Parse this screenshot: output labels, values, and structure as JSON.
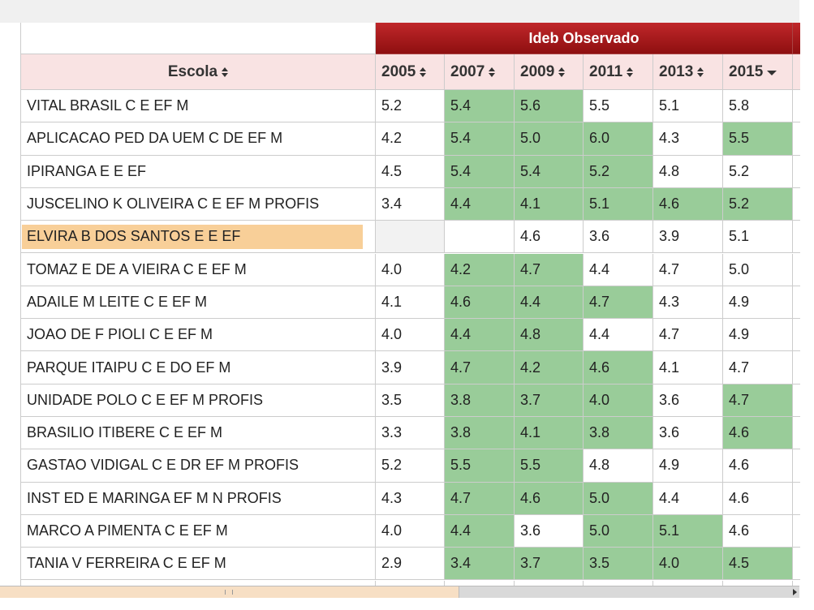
{
  "table": {
    "group_header": "Ideb Observado",
    "columns": [
      "Escola",
      "2005",
      "2007",
      "2009",
      "2011",
      "2013",
      "2015"
    ],
    "sorted_column": 6,
    "selected_row": 4,
    "highlight_color": "#99cc99",
    "rows": [
      {
        "escola": "VITAL BRASIL C E EF M",
        "ideb": [
          "5.2",
          "5.4",
          "5.6",
          "5.5",
          "5.1",
          "5.8"
        ],
        "highlight": [
          false,
          true,
          true,
          false,
          false,
          false
        ]
      },
      {
        "escola": "APLICACAO PED DA UEM C DE EF M",
        "ideb": [
          "4.2",
          "5.4",
          "5.0",
          "6.0",
          "4.3",
          "5.5"
        ],
        "highlight": [
          false,
          true,
          true,
          true,
          false,
          true
        ]
      },
      {
        "escola": "IPIRANGA E E EF",
        "ideb": [
          "4.5",
          "5.4",
          "5.4",
          "5.2",
          "4.8",
          "5.2"
        ],
        "highlight": [
          false,
          true,
          true,
          true,
          false,
          false
        ]
      },
      {
        "escola": "JUSCELINO K OLIVEIRA C E EF M PROFIS",
        "ideb": [
          "3.4",
          "4.4",
          "4.1",
          "5.1",
          "4.6",
          "5.2"
        ],
        "highlight": [
          false,
          true,
          true,
          true,
          true,
          true
        ]
      },
      {
        "escola": "ELVIRA B DOS SANTOS E E EF",
        "ideb": [
          null,
          null,
          "4.6",
          "3.6",
          "3.9",
          "5.1"
        ],
        "highlight": [
          false,
          false,
          false,
          false,
          false,
          false
        ]
      },
      {
        "escola": "TOMAZ E DE A VIEIRA C E EF M",
        "ideb": [
          "4.0",
          "4.2",
          "4.7",
          "4.4",
          "4.7",
          "5.0"
        ],
        "highlight": [
          false,
          true,
          true,
          false,
          false,
          false
        ]
      },
      {
        "escola": "ADAILE M LEITE C E EF M",
        "ideb": [
          "4.1",
          "4.6",
          "4.4",
          "4.7",
          "4.3",
          "4.9"
        ],
        "highlight": [
          false,
          true,
          true,
          true,
          false,
          false
        ]
      },
      {
        "escola": "JOAO DE F PIOLI C E EF M",
        "ideb": [
          "4.0",
          "4.4",
          "4.8",
          "4.4",
          "4.7",
          "4.9"
        ],
        "highlight": [
          false,
          true,
          true,
          false,
          false,
          false
        ]
      },
      {
        "escola": "PARQUE ITAIPU C E DO EF M",
        "ideb": [
          "3.9",
          "4.7",
          "4.2",
          "4.6",
          "4.1",
          "4.7"
        ],
        "highlight": [
          false,
          true,
          true,
          true,
          false,
          false
        ]
      },
      {
        "escola": "UNIDADE POLO C E EF M PROFIS",
        "ideb": [
          "3.5",
          "3.8",
          "3.7",
          "4.0",
          "3.6",
          "4.7"
        ],
        "highlight": [
          false,
          true,
          true,
          true,
          false,
          true
        ]
      },
      {
        "escola": "BRASILIO ITIBERE C E EF M",
        "ideb": [
          "3.3",
          "3.8",
          "4.1",
          "3.8",
          "3.6",
          "4.6"
        ],
        "highlight": [
          false,
          true,
          true,
          true,
          false,
          true
        ]
      },
      {
        "escola": "GASTAO VIDIGAL C E DR EF M PROFIS",
        "ideb": [
          "5.2",
          "5.5",
          "5.5",
          "4.8",
          "4.9",
          "4.6"
        ],
        "highlight": [
          false,
          true,
          true,
          false,
          false,
          false
        ]
      },
      {
        "escola": "INST ED E MARINGA EF M N PROFIS",
        "ideb": [
          "4.3",
          "4.7",
          "4.6",
          "5.0",
          "4.4",
          "4.6"
        ],
        "highlight": [
          false,
          true,
          true,
          true,
          false,
          false
        ]
      },
      {
        "escola": "MARCO A PIMENTA C E EF M",
        "ideb": [
          "4.0",
          "4.4",
          "3.6",
          "5.0",
          "5.1",
          "4.6"
        ],
        "highlight": [
          false,
          true,
          false,
          true,
          true,
          false
        ]
      },
      {
        "escola": "TANIA V FERREIRA C E EF M",
        "ideb": [
          "2.9",
          "3.4",
          "3.7",
          "3.5",
          "4.0",
          "4.5"
        ],
        "highlight": [
          false,
          true,
          true,
          true,
          true,
          true
        ]
      }
    ]
  }
}
